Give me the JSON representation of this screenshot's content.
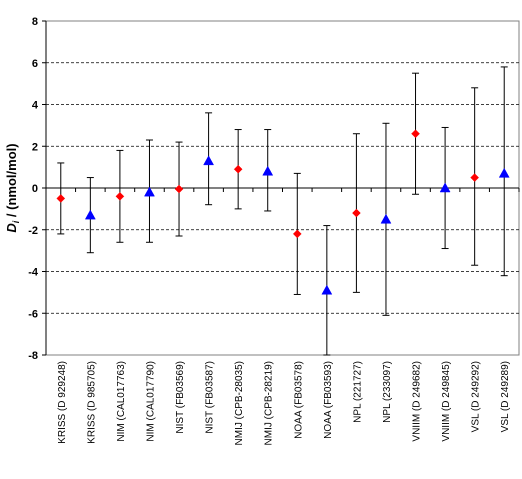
{
  "chart_data": {
    "type": "scatter",
    "title": "",
    "xlabel": "",
    "ylabel": {
      "symbol": "D",
      "subscript": "i",
      "rest": " / (nmol/mol)"
    },
    "ylim": [
      -8,
      8
    ],
    "yticks": [
      8,
      6,
      4,
      2,
      0,
      -2,
      -4,
      -6,
      -8
    ],
    "grid": "horizontal dashed",
    "legend": "none",
    "colors": {
      "diamond": "#ff0000",
      "triangle": "#0000ff",
      "axis": "#000000",
      "grid": "#000000"
    },
    "categories": [
      "KRISS (D 929248)",
      "KRISS (D 985705)",
      "NIM (CAL017763)",
      "NIM (CAL017790)",
      "NIST (FB03569)",
      "NIST (FB03587)",
      "NMIJ (CPB-28035)",
      "NMIJ (CPB-28219)",
      "NOAA (FB03578)",
      "NOAA (FB03593)",
      "NPL (221727)",
      "NPL (233097)",
      "VNIIM (D 249682)",
      "VNIIM (D 249845)",
      "VSL (D 249292)",
      "VSL (D 249289)"
    ],
    "points": [
      {
        "marker": "diamond",
        "y": -0.5,
        "err_low": -2.2,
        "err_high": 1.2
      },
      {
        "marker": "triangle",
        "y": -1.3,
        "err_low": -3.1,
        "err_high": 0.5
      },
      {
        "marker": "diamond",
        "y": -0.4,
        "err_low": -2.6,
        "err_high": 1.8
      },
      {
        "marker": "triangle",
        "y": -0.2,
        "err_low": -2.6,
        "err_high": 2.3
      },
      {
        "marker": "diamond",
        "y": -0.05,
        "err_low": -2.3,
        "err_high": 2.2
      },
      {
        "marker": "triangle",
        "y": 1.3,
        "err_low": -0.8,
        "err_high": 3.6
      },
      {
        "marker": "diamond",
        "y": 0.9,
        "err_low": -1.0,
        "err_high": 2.8
      },
      {
        "marker": "triangle",
        "y": 0.8,
        "err_low": -1.1,
        "err_high": 2.8
      },
      {
        "marker": "diamond",
        "y": -2.2,
        "err_low": -5.1,
        "err_high": 0.7
      },
      {
        "marker": "triangle",
        "y": -4.9,
        "err_low": -8.0,
        "err_high": -1.8
      },
      {
        "marker": "diamond",
        "y": -1.2,
        "err_low": -5.0,
        "err_high": 2.6
      },
      {
        "marker": "triangle",
        "y": -1.5,
        "err_low": -6.1,
        "err_high": 3.1
      },
      {
        "marker": "diamond",
        "y": 2.6,
        "err_low": -0.3,
        "err_high": 5.5
      },
      {
        "marker": "triangle",
        "y": 0.0,
        "err_low": -2.9,
        "err_high": 2.9
      },
      {
        "marker": "diamond",
        "y": 0.5,
        "err_low": -3.7,
        "err_high": 4.8
      },
      {
        "marker": "triangle",
        "y": 0.7,
        "err_low": -4.2,
        "err_high": 5.8
      }
    ]
  }
}
